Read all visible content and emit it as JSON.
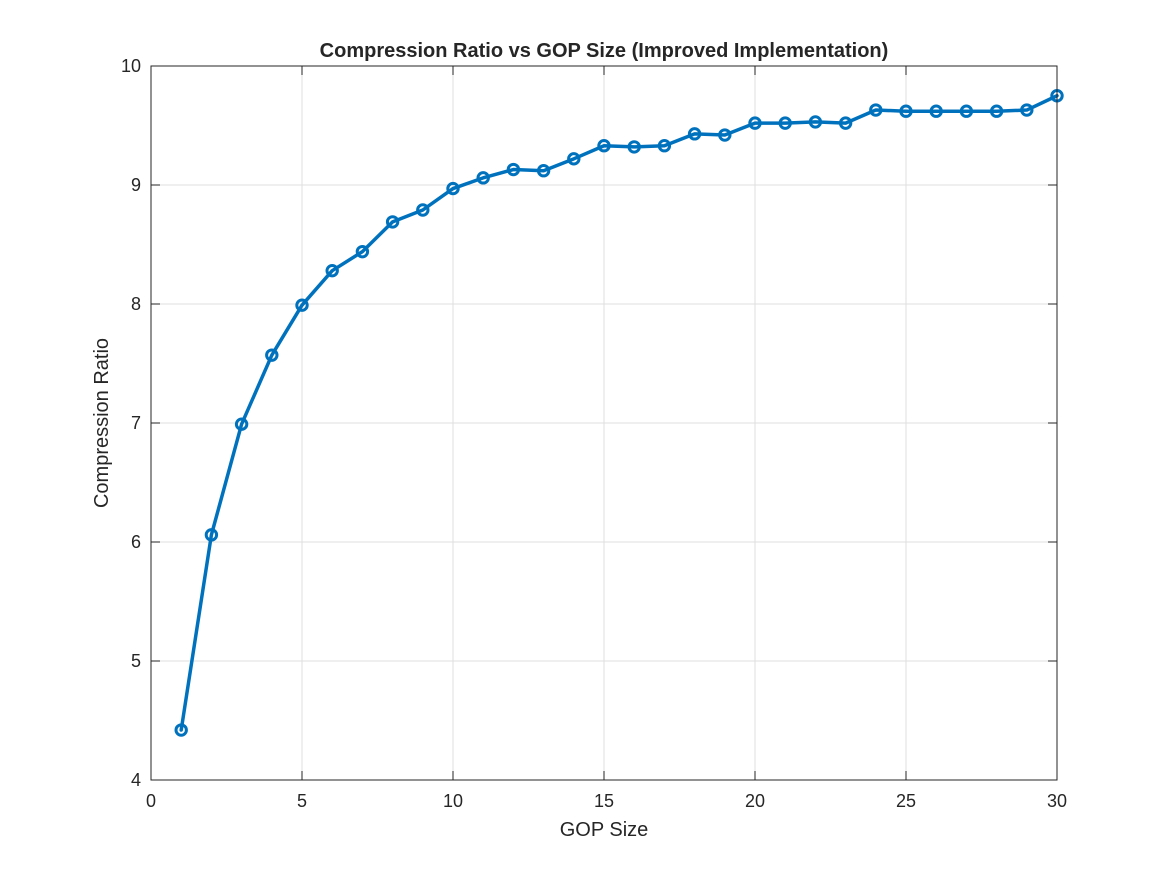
{
  "chart_data": {
    "type": "line",
    "title": "Compression Ratio vs GOP Size (Improved Implementation)",
    "xlabel": "GOP Size",
    "ylabel": "Compression Ratio",
    "xlim": [
      0,
      30
    ],
    "ylim": [
      4,
      10
    ],
    "xticks": [
      "0",
      "5",
      "10",
      "15",
      "20",
      "25",
      "30"
    ],
    "yticks": [
      "4",
      "5",
      "6",
      "7",
      "8",
      "9",
      "10"
    ],
    "grid": true,
    "marker": "circle",
    "series": [
      {
        "color": "#0072BD",
        "x": [
          1,
          2,
          3,
          4,
          5,
          6,
          7,
          8,
          9,
          10,
          11,
          12,
          13,
          14,
          15,
          16,
          17,
          18,
          19,
          20,
          21,
          22,
          23,
          24,
          25,
          26,
          27,
          28,
          29,
          30
        ],
        "y": [
          4.42,
          6.06,
          6.99,
          7.57,
          7.99,
          8.28,
          8.44,
          8.69,
          8.79,
          8.97,
          9.06,
          9.13,
          9.12,
          9.22,
          9.33,
          9.32,
          9.33,
          9.43,
          9.42,
          9.52,
          9.52,
          9.53,
          9.52,
          9.63,
          9.62,
          9.62,
          9.62,
          9.62,
          9.63,
          9.75
        ]
      }
    ]
  }
}
